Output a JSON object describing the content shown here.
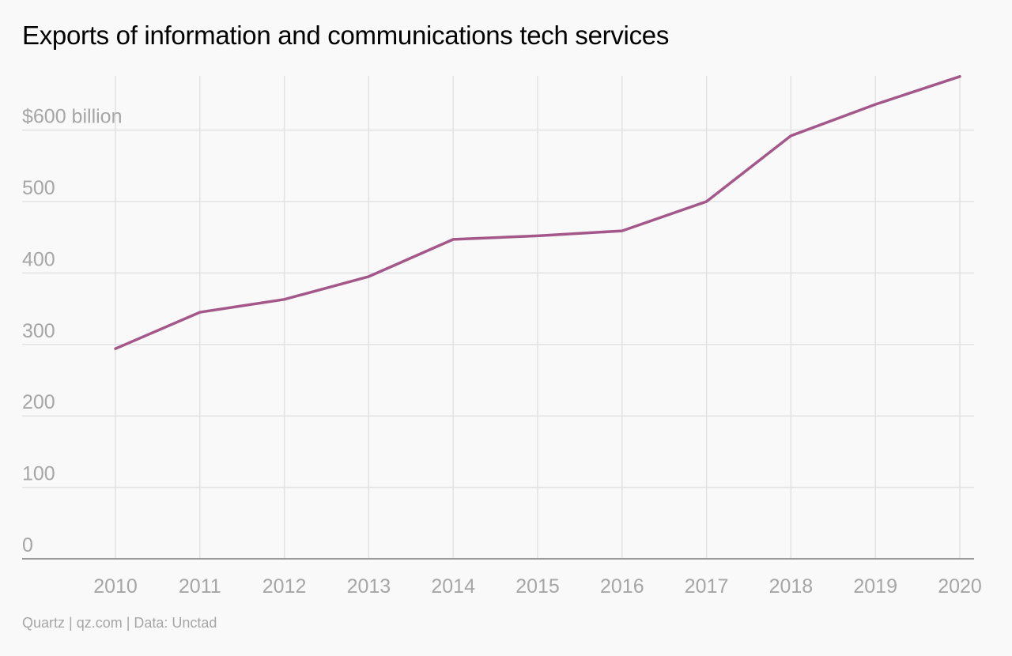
{
  "chart_data": {
    "type": "line",
    "title": "Exports of information and communications tech services",
    "xlabel": "",
    "ylabel": "",
    "x": [
      "2010",
      "2011",
      "2012",
      "2013",
      "2014",
      "2015",
      "2016",
      "2017",
      "2018",
      "2019",
      "2020"
    ],
    "series": [
      {
        "values": [
          294,
          345,
          363,
          395,
          447,
          452,
          459,
          500,
          592,
          636,
          675
        ],
        "color": "#a4588a"
      }
    ],
    "y_ticks": [
      {
        "value": 0,
        "label": "0"
      },
      {
        "value": 100,
        "label": "100"
      },
      {
        "value": 200,
        "label": "200"
      },
      {
        "value": 300,
        "label": "300"
      },
      {
        "value": 400,
        "label": "400"
      },
      {
        "value": 500,
        "label": "500"
      },
      {
        "value": 600,
        "label": "$600 billion"
      }
    ],
    "ylim": [
      0,
      675
    ],
    "grid": true,
    "credit": "Quartz | qz.com | Data: Unctad"
  }
}
